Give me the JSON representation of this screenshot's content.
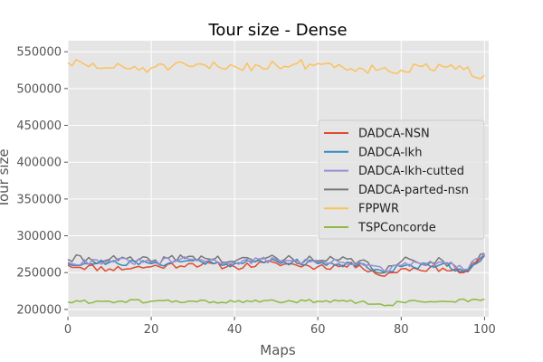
{
  "chart_data": {
    "type": "line",
    "title": "Tour size - Dense",
    "xlabel": "Maps",
    "ylabel": "Tour size",
    "xlim": [
      0,
      101
    ],
    "ylim": [
      190000,
      565000
    ],
    "x_ticks": [
      0,
      20,
      40,
      60,
      80,
      100
    ],
    "y_ticks": [
      200000,
      250000,
      300000,
      350000,
      400000,
      450000,
      500000,
      550000
    ],
    "grid": true,
    "legend_position": "center-right",
    "background": "#e5e5e5",
    "series": [
      {
        "name": "DADCA-NSN",
        "color": "#e24a33",
        "anchor_x": [
          0,
          10,
          20,
          30,
          40,
          50,
          60,
          70,
          76,
          80,
          90,
          95,
          100
        ],
        "anchor_y": [
          260000,
          255000,
          258000,
          262000,
          258000,
          263000,
          258000,
          260000,
          245000,
          255000,
          256000,
          250000,
          272000
        ],
        "jitter": 9000,
        "seed": 11
      },
      {
        "name": "DADCA-lkh",
        "color": "#348abd",
        "anchor_x": [
          0,
          10,
          20,
          30,
          40,
          50,
          60,
          70,
          76,
          80,
          90,
          95,
          100
        ],
        "anchor_y": [
          262000,
          264000,
          262000,
          266000,
          262000,
          266000,
          262000,
          262000,
          250000,
          258000,
          262000,
          252000,
          274000
        ],
        "jitter": 9000,
        "seed": 21
      },
      {
        "name": "DADCA-lkh-cutted",
        "color": "#988ed5",
        "anchor_x": [
          0,
          10,
          20,
          30,
          40,
          50,
          60,
          70,
          76,
          80,
          90,
          95,
          100
        ],
        "anchor_y": [
          264000,
          266000,
          264000,
          268000,
          264000,
          268000,
          264000,
          264000,
          252000,
          260000,
          264000,
          254000,
          275000
        ],
        "jitter": 9000,
        "seed": 31
      },
      {
        "name": "DADCA-parted-nsn",
        "color": "#777777",
        "anchor_x": [
          0,
          10,
          20,
          30,
          40,
          50,
          60,
          70,
          76,
          80,
          90,
          95,
          100
        ],
        "anchor_y": [
          268000,
          268000,
          265000,
          272000,
          265000,
          270000,
          266000,
          266000,
          250000,
          265000,
          266000,
          252000,
          276000
        ],
        "jitter": 12000,
        "seed": 41
      },
      {
        "name": "FPPWR",
        "color": "#fbc15e",
        "anchor_x": [
          0,
          10,
          20,
          30,
          40,
          50,
          60,
          70,
          80,
          90,
          100
        ],
        "anchor_y": [
          535000,
          528000,
          528000,
          530000,
          530000,
          532000,
          534000,
          528000,
          525000,
          530000,
          518000
        ],
        "jitter": 14000,
        "seed": 51
      },
      {
        "name": "TSPConcorde",
        "color": "#8eba42",
        "anchor_x": [
          0,
          10,
          20,
          30,
          40,
          50,
          60,
          70,
          76,
          80,
          90,
          100
        ],
        "anchor_y": [
          210000,
          211000,
          211000,
          211000,
          210000,
          211000,
          211000,
          210000,
          205000,
          210000,
          211000,
          214000
        ],
        "jitter": 5000,
        "seed": 61
      }
    ]
  }
}
